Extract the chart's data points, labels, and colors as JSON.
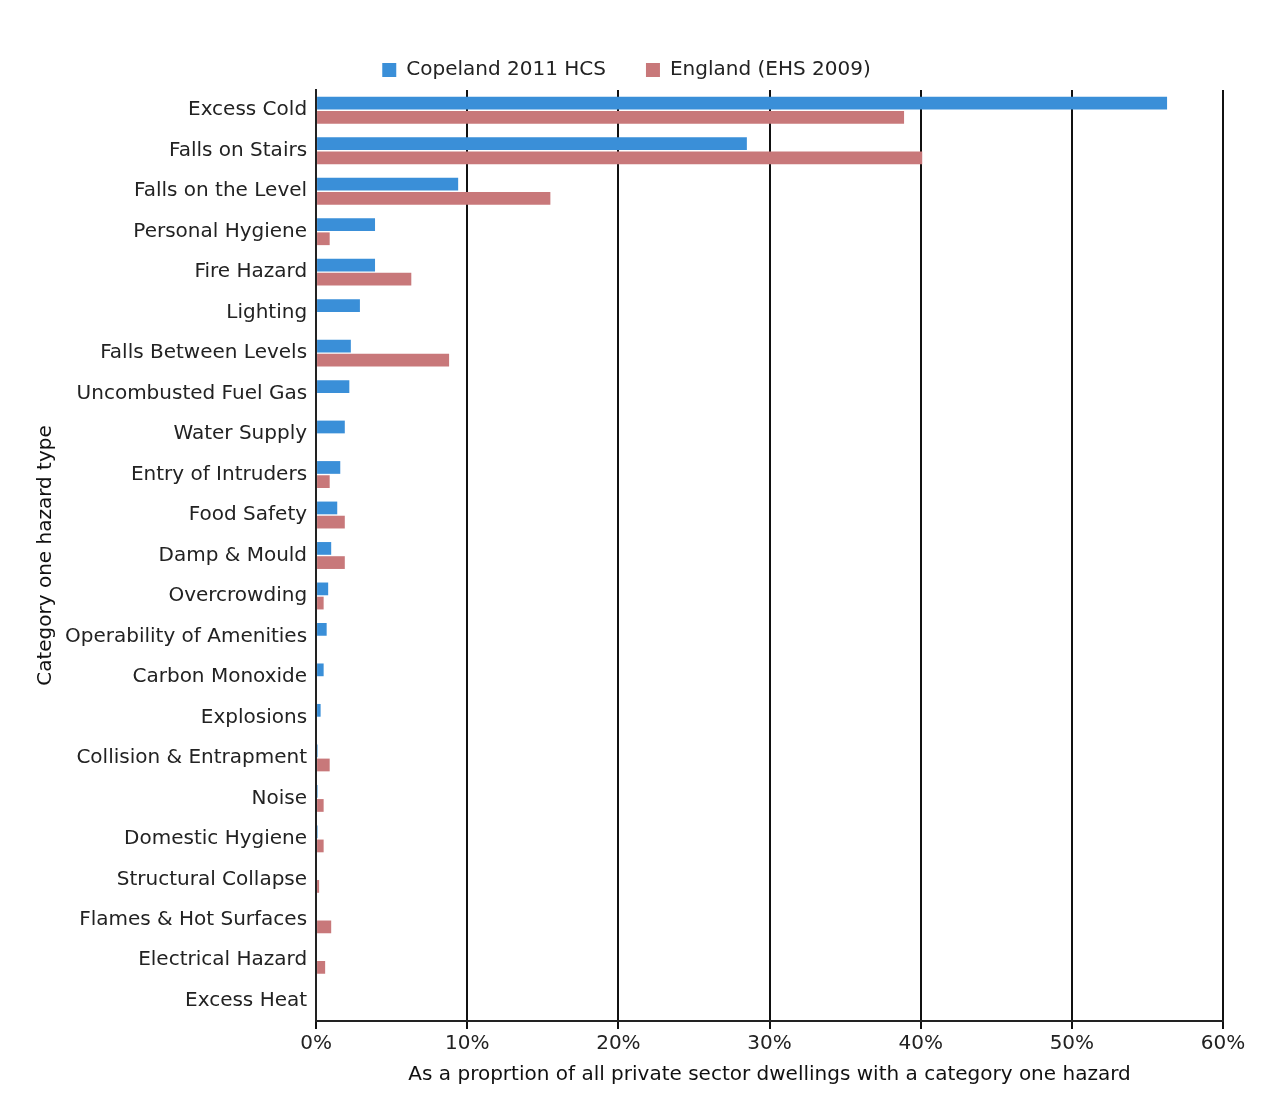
{
  "chart_data": {
    "type": "bar",
    "orientation": "horizontal",
    "xlabel": "As a proprtion of all private sector dwellings with a category one hazard",
    "ylabel": "Category one hazard type",
    "categories": [
      "Excess Cold",
      "Falls on Stairs",
      "Falls on the Level",
      "Personal Hygiene",
      "Fire Hazard",
      "Lighting",
      "Falls Between Levels",
      "Uncombusted Fuel Gas",
      "Water Supply",
      "Entry of Intruders",
      "Food Safety",
      "Damp & Mould",
      "Overcrowding",
      "Operability of Amenities",
      "Carbon Monoxide",
      "Explosions",
      "Collision & Entrapment",
      "Noise",
      "Domestic Hygiene",
      "Structural Collapse",
      "Flames & Hot Surfaces",
      "Electrical Hazard",
      "Excess Heat"
    ],
    "series": [
      {
        "name": "Copeland 2011 HCS",
        "color": "#3a8fd8",
        "values": [
          56.3,
          28.5,
          9.4,
          3.9,
          3.9,
          2.9,
          2.3,
          2.2,
          1.9,
          1.6,
          1.4,
          1.0,
          0.8,
          0.7,
          0.5,
          0.3,
          0.1,
          0.1,
          0.1,
          0,
          0,
          0,
          0
        ]
      },
      {
        "name": "England (EHS 2009)",
        "color": "#c8787a",
        "values": [
          38.9,
          40.1,
          15.5,
          0.9,
          6.3,
          0,
          8.8,
          0,
          0,
          0.9,
          1.9,
          1.9,
          0.5,
          0,
          0,
          0,
          0.9,
          0.5,
          0.5,
          0.2,
          1.0,
          0.6,
          0
        ]
      }
    ],
    "xlim": [
      0,
      60
    ],
    "xticks": [
      {
        "value": 0,
        "label": "0%"
      },
      {
        "value": 10,
        "label": "10%"
      },
      {
        "value": 20,
        "label": "20%"
      },
      {
        "value": 30,
        "label": "30%"
      },
      {
        "value": 40,
        "label": "40%"
      },
      {
        "value": 50,
        "label": "50%"
      },
      {
        "value": 60,
        "label": "60%"
      }
    ],
    "grid": "x",
    "legend": "top"
  }
}
